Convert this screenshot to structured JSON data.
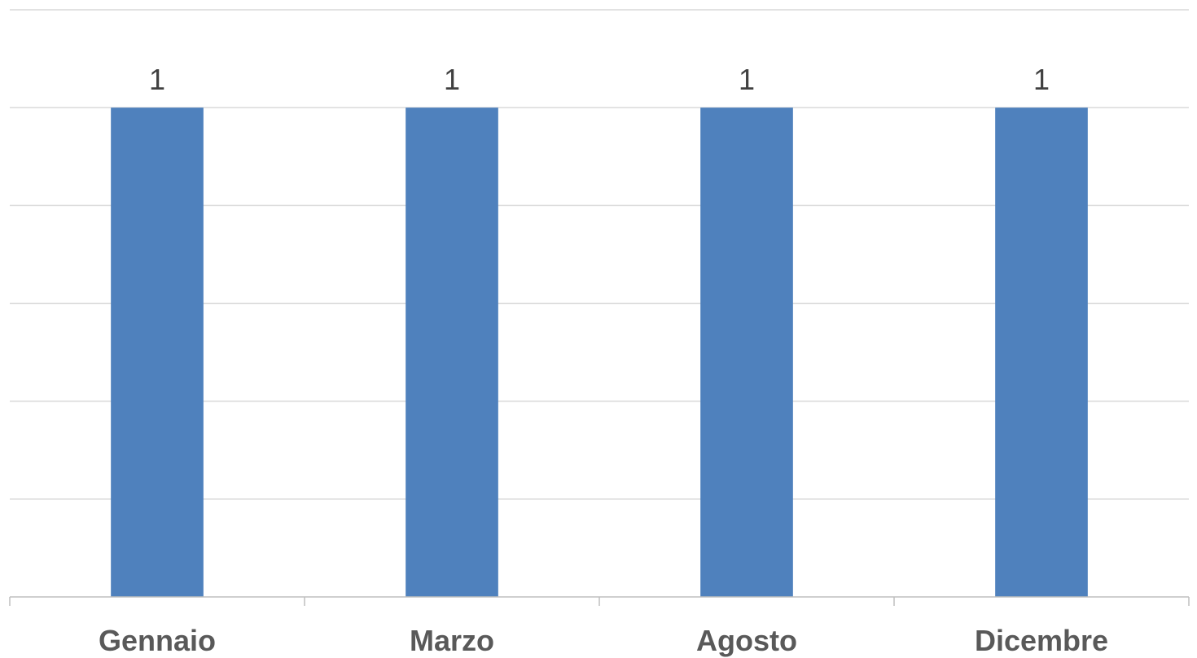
{
  "chart_data": {
    "type": "bar",
    "categories": [
      "Gennaio",
      "Marzo",
      "Agosto",
      "Dicembre"
    ],
    "values": [
      1,
      1,
      1,
      1
    ],
    "data_labels": [
      "1",
      "1",
      "1",
      "1"
    ],
    "title": "",
    "xlabel": "",
    "ylabel": "",
    "ylim": [
      0,
      1.2
    ],
    "y_gridline_step": 0.2,
    "grid": true,
    "show_y_tick_labels": false,
    "legend": "none",
    "bar_color": "#4f81bd",
    "category_label_color": "#595959",
    "data_label_color": "#404040",
    "gridline_color": "#d9d9d9"
  }
}
